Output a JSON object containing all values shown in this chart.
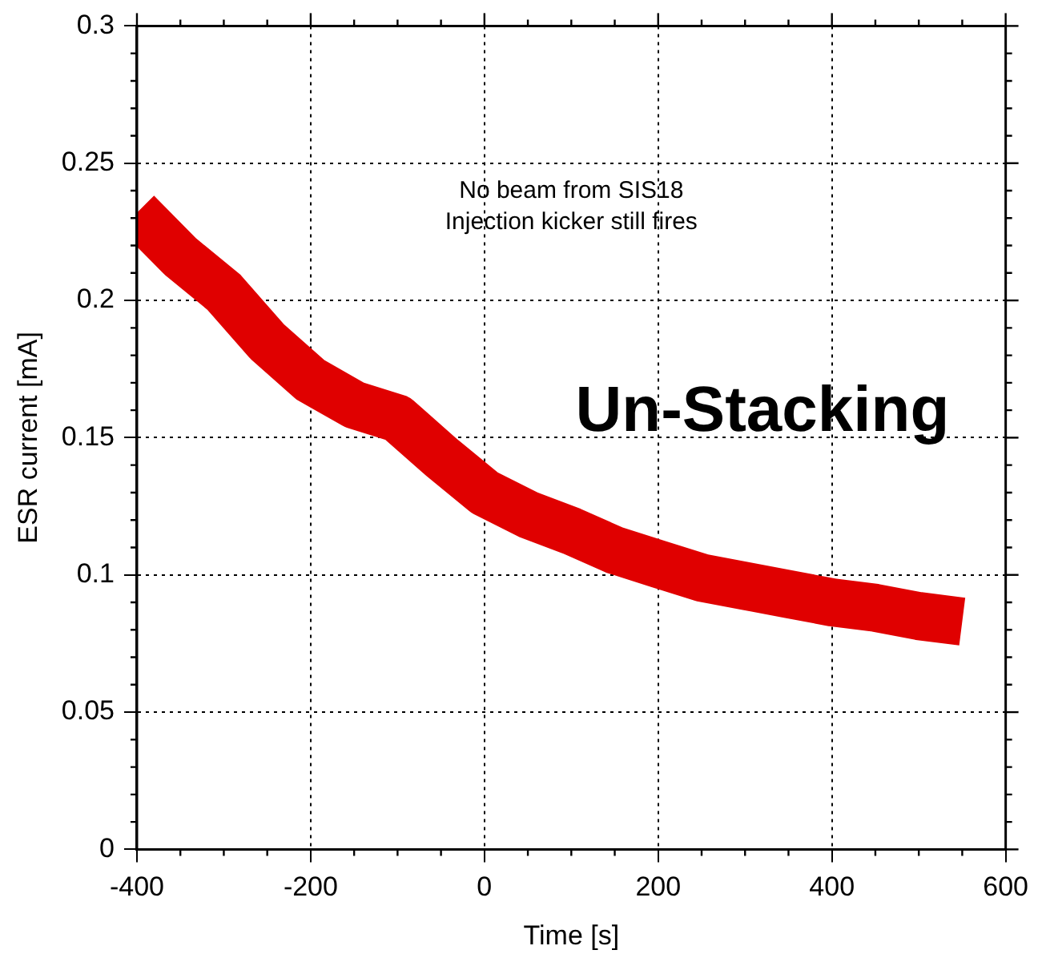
{
  "chart_data": {
    "type": "line",
    "xlabel": "Time [s]",
    "ylabel": "ESR current [mA]",
    "annotations": [
      "No beam from SIS18\nInjection kicker still fires",
      "Un-Stacking"
    ],
    "x": [
      -400,
      -350,
      -300,
      -250,
      -200,
      -150,
      -100,
      -50,
      0,
      50,
      100,
      150,
      200,
      250,
      300,
      350,
      400,
      450,
      500,
      550
    ],
    "series": [
      {
        "color": "#e00000",
        "values": [
          0.232,
          0.216,
          0.203,
          0.185,
          0.171,
          0.162,
          0.157,
          0.143,
          0.13,
          0.122,
          0.116,
          0.109,
          0.104,
          0.099,
          0.096,
          0.093,
          0.09,
          0.088,
          0.085,
          0.083
        ]
      }
    ],
    "xlim": [
      -400,
      600
    ],
    "xticks": [
      -400,
      -200,
      0,
      200,
      400,
      600
    ],
    "ylim": [
      0,
      0.3
    ],
    "yticks": [
      0,
      0.05,
      0.1,
      0.15,
      0.2,
      0.25,
      0.3
    ],
    "grid": true,
    "legend": false,
    "marker": "none",
    "line_style": "solid"
  }
}
